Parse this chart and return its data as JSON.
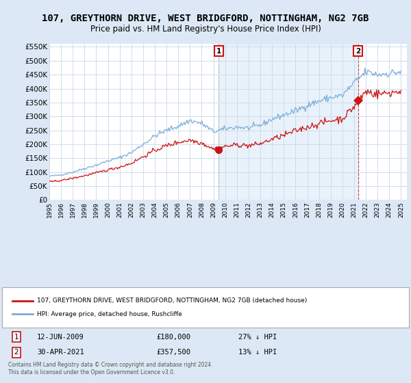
{
  "title": "107, GREYTHORN DRIVE, WEST BRIDGFORD, NOTTINGHAM, NG2 7GB",
  "subtitle": "Price paid vs. HM Land Registry's House Price Index (HPI)",
  "title_fontsize": 10,
  "subtitle_fontsize": 8.5,
  "ylim": [
    0,
    560000
  ],
  "yticks": [
    0,
    50000,
    100000,
    150000,
    200000,
    250000,
    300000,
    350000,
    400000,
    450000,
    500000,
    550000
  ],
  "ytick_labels": [
    "£0",
    "£50K",
    "£100K",
    "£150K",
    "£200K",
    "£250K",
    "£300K",
    "£350K",
    "£400K",
    "£450K",
    "£500K",
    "£550K"
  ],
  "xlim_start": 1995.0,
  "xlim_end": 2025.5,
  "xtick_years": [
    1995,
    1996,
    1997,
    1998,
    1999,
    2000,
    2001,
    2002,
    2003,
    2004,
    2005,
    2006,
    2007,
    2008,
    2009,
    2010,
    2011,
    2012,
    2013,
    2014,
    2015,
    2016,
    2017,
    2018,
    2019,
    2020,
    2021,
    2022,
    2023,
    2024,
    2025
  ],
  "bg_color": "#dce8f5",
  "plot_bg_color": "#ffffff",
  "grid_color": "#c8d8e8",
  "hpi_color": "#7aaddb",
  "property_color": "#cc1111",
  "transaction1_x": 2009.45,
  "transaction1_y": 180000,
  "transaction2_x": 2021.33,
  "transaction2_y": 357500,
  "shade_color": "#ddeeff",
  "legend_line1": "107, GREYTHORN DRIVE, WEST BRIDGFORD, NOTTINGHAM, NG2 7GB (detached house)",
  "legend_line2": "HPI: Average price, detached house, Rushcliffe",
  "table_row1": [
    "1",
    "12-JUN-2009",
    "£180,000",
    "27% ↓ HPI"
  ],
  "table_row2": [
    "2",
    "30-APR-2021",
    "£357,500",
    "13% ↓ HPI"
  ],
  "footer": "Contains HM Land Registry data © Crown copyright and database right 2024.\nThis data is licensed under the Open Government Licence v3.0."
}
